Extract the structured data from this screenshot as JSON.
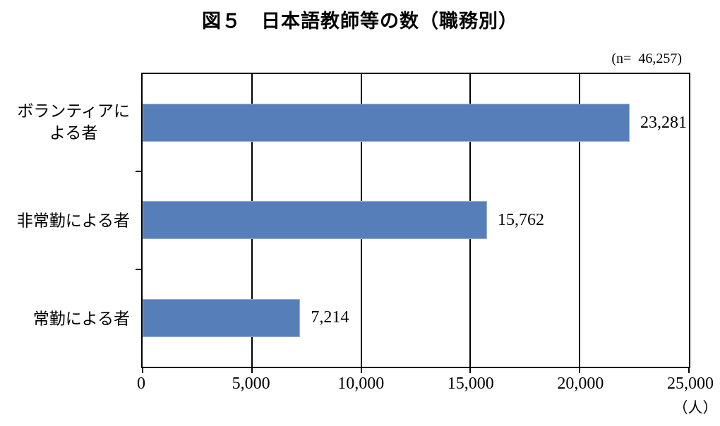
{
  "chart_data": {
    "type": "bar",
    "orientation": "horizontal",
    "title": "図５　日本語教師等の数（職務別）",
    "n_label": "(n=  46,257)",
    "n_total": 46257,
    "categories": [
      "ボランティアによる者",
      "非常勤による者",
      "常勤による者"
    ],
    "category_display": [
      "ボランティアに\nよる者",
      "非常勤による者",
      "常勤による者"
    ],
    "values": [
      23281,
      15762,
      7214
    ],
    "value_labels": [
      "23,281",
      "15,762",
      "7,214"
    ],
    "xlim": [
      0,
      25000
    ],
    "ticks": [
      0,
      5000,
      10000,
      15000,
      20000,
      25000
    ],
    "tick_labels": [
      "0",
      "5,000",
      "10,000",
      "15,000",
      "20,000",
      "25,000"
    ],
    "xlabel": "（人）",
    "grid": true,
    "legend": "none",
    "bar_color": "#567FB9",
    "bar_border_color": "#9AAED2",
    "axis_color": "#000000"
  }
}
